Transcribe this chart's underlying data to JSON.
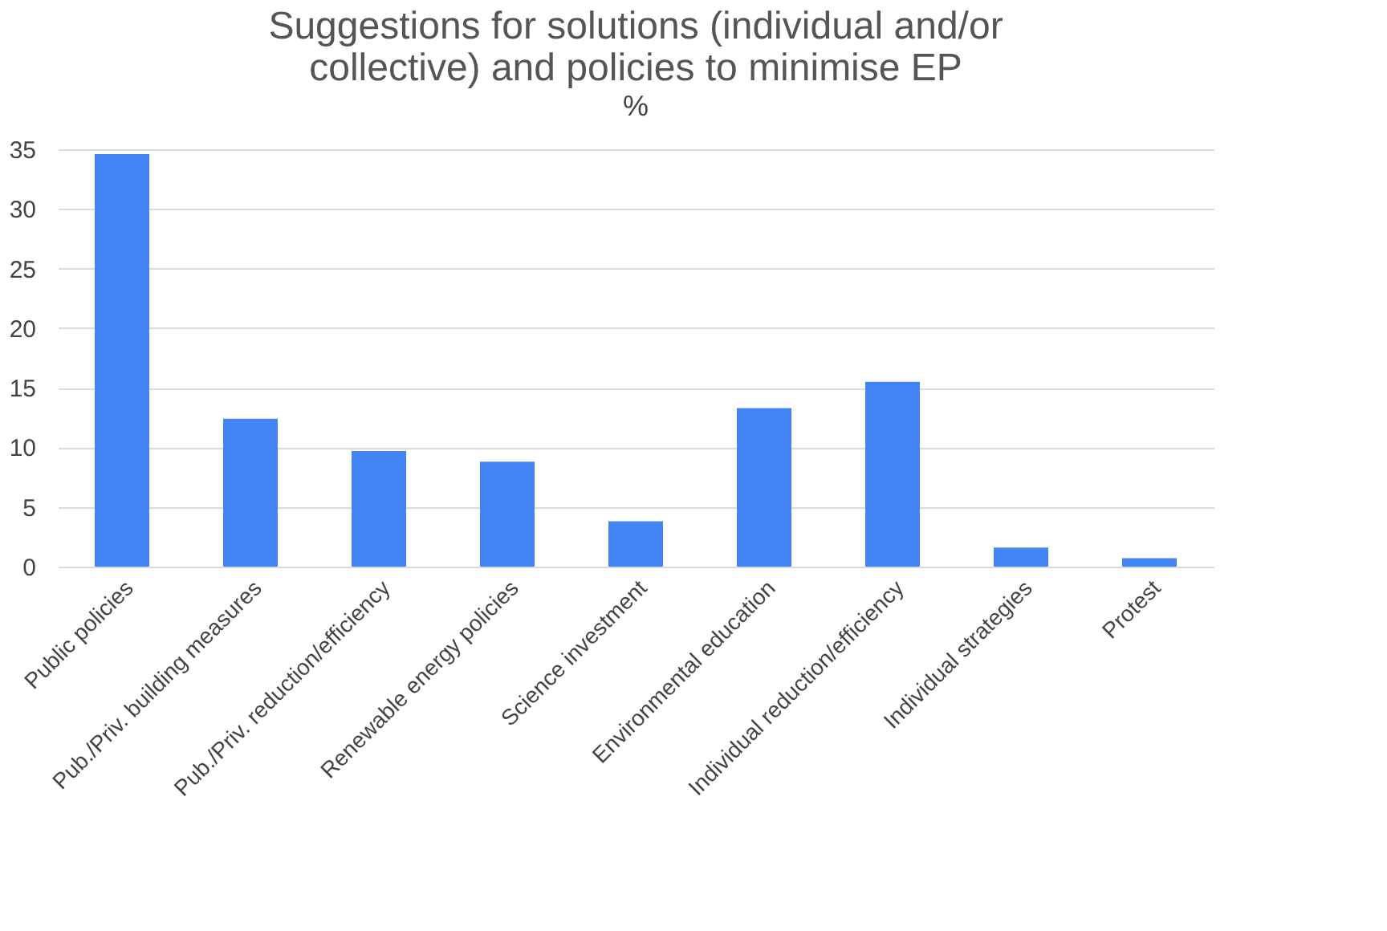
{
  "chart_data": {
    "type": "bar",
    "title": "Suggestions for solutions (individual and/or collective) and policies to minimise EP",
    "ylabel": "%",
    "categories": [
      "Public policies",
      "Pub./Priv. building measures",
      "Pub./Priv. reduction/efficiency",
      "Renewable energy policies",
      "Science investment",
      "Environmental education",
      "Individual reduction/efficiency",
      "Individual strategies",
      "Protest"
    ],
    "values": [
      34.6,
      12.4,
      9.7,
      8.8,
      3.8,
      13.3,
      15.5,
      1.6,
      0.7
    ],
    "color": "#4285f4",
    "ylim": [
      0,
      35
    ],
    "yticks": [
      0,
      5,
      10,
      15,
      20,
      25,
      30,
      35
    ],
    "grid": "y"
  }
}
